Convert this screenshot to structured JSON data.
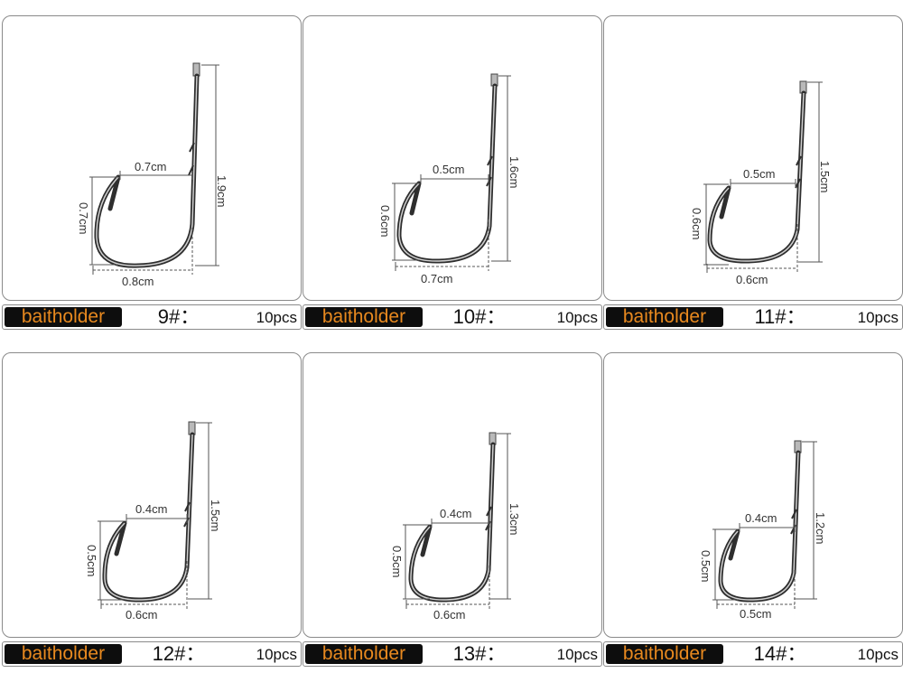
{
  "colors": {
    "tag_bg": "#0d0d0d",
    "tag_text": "#e8891f",
    "border": "#8a8a8a"
  },
  "products": [
    {
      "type": "baitholder",
      "size": "9#：",
      "qty": "10pcs",
      "shank": "1.9cm",
      "gap": "0.7cm",
      "throat": "0.7cm",
      "width": "0.8cm"
    },
    {
      "type": "baitholder",
      "size": "10#：",
      "qty": "10pcs",
      "shank": "1.6cm",
      "gap": "0.5cm",
      "throat": "0.6cm",
      "width": "0.7cm"
    },
    {
      "type": "baitholder",
      "size": "11#：",
      "qty": "10pcs",
      "shank": "1.5cm",
      "gap": "0.5cm",
      "throat": "0.6cm",
      "width": "0.6cm"
    },
    {
      "type": "baitholder",
      "size": "12#：",
      "qty": "10pcs",
      "shank": "1.5cm",
      "gap": "0.4cm",
      "throat": "0.5cm",
      "width": "0.6cm"
    },
    {
      "type": "baitholder",
      "size": "13#：",
      "qty": "10pcs",
      "shank": "1.3cm",
      "gap": "0.4cm",
      "throat": "0.5cm",
      "width": "0.6cm"
    },
    {
      "type": "baitholder",
      "size": "14#：",
      "qty": "10pcs",
      "shank": "1.2cm",
      "gap": "0.4cm",
      "throat": "0.5cm",
      "width": "0.5cm"
    }
  ]
}
